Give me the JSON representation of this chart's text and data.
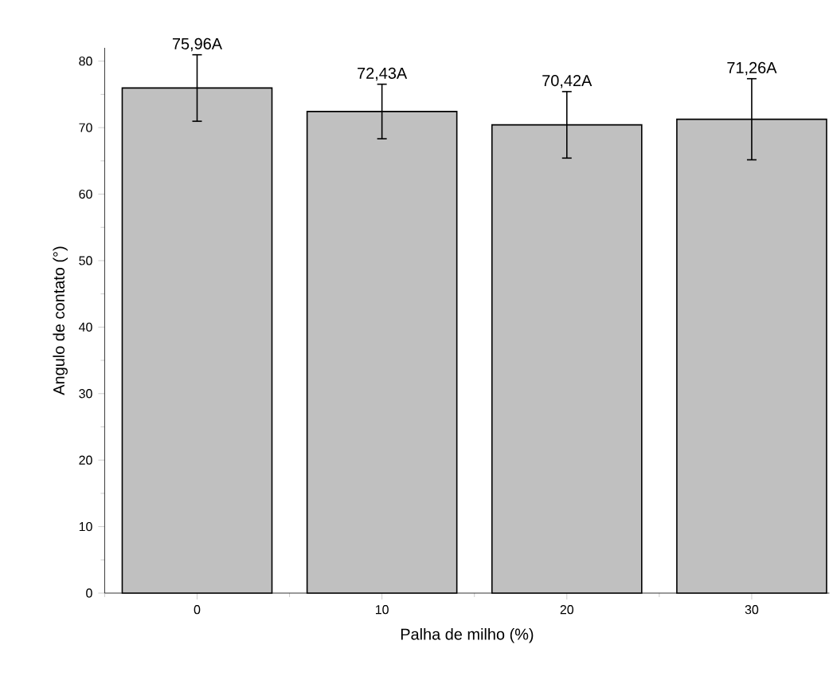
{
  "chart_data": {
    "type": "bar",
    "xlabel": "Palha de milho (%)",
    "ylabel": "Angulo de contato (°)",
    "categories": [
      "0",
      "10",
      "20",
      "30"
    ],
    "values": [
      75.96,
      72.43,
      70.42,
      71.26
    ],
    "errors": [
      5.0,
      4.1,
      5.0,
      6.1
    ],
    "value_labels": [
      "75,96A",
      "72,43A",
      "70,42A",
      "71,26A"
    ],
    "color": "#c0c0c0",
    "ylim": [
      0,
      82
    ],
    "yticks": [
      0,
      10,
      20,
      30,
      40,
      50,
      60,
      70,
      80
    ],
    "grid": false
  }
}
